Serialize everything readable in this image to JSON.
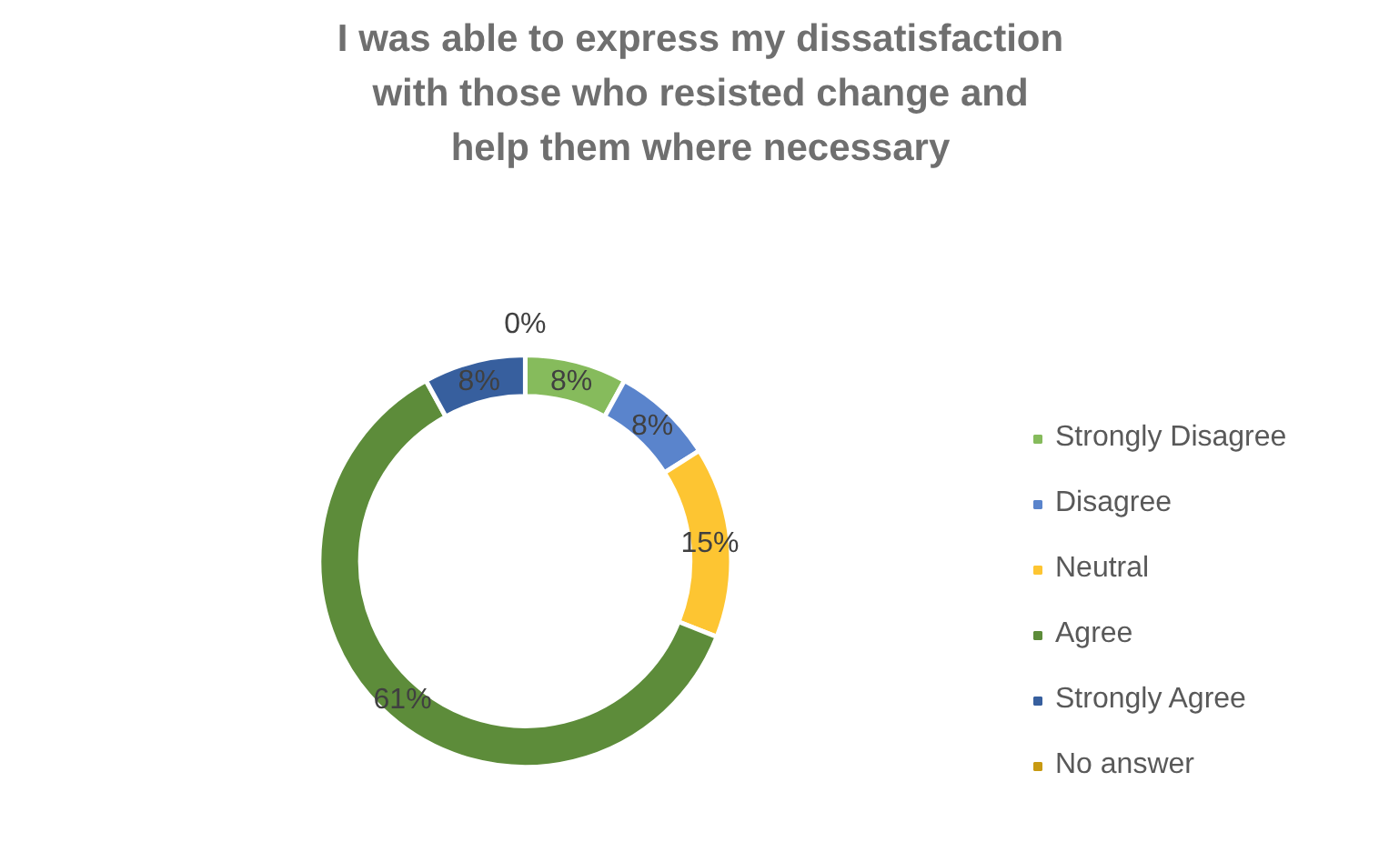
{
  "chart_data": {
    "type": "donut",
    "title": "I was able to express my dissatisfaction\nwith those who resisted change and\nhelp them where necessary",
    "categories": [
      "Strongly Disagree",
      "Disagree",
      "Neutral",
      "Agree",
      "Strongly Agree",
      "No answer"
    ],
    "values": [
      8,
      8,
      15,
      61,
      8,
      0
    ],
    "value_labels": [
      "8%",
      "8%",
      "15%",
      "61%",
      "8%",
      "0%"
    ],
    "colors": [
      "#86bb5c",
      "#5a84cc",
      "#fdc532",
      "#5d8c3a",
      "#375f9e",
      "#c89a12"
    ],
    "legend": "right"
  }
}
